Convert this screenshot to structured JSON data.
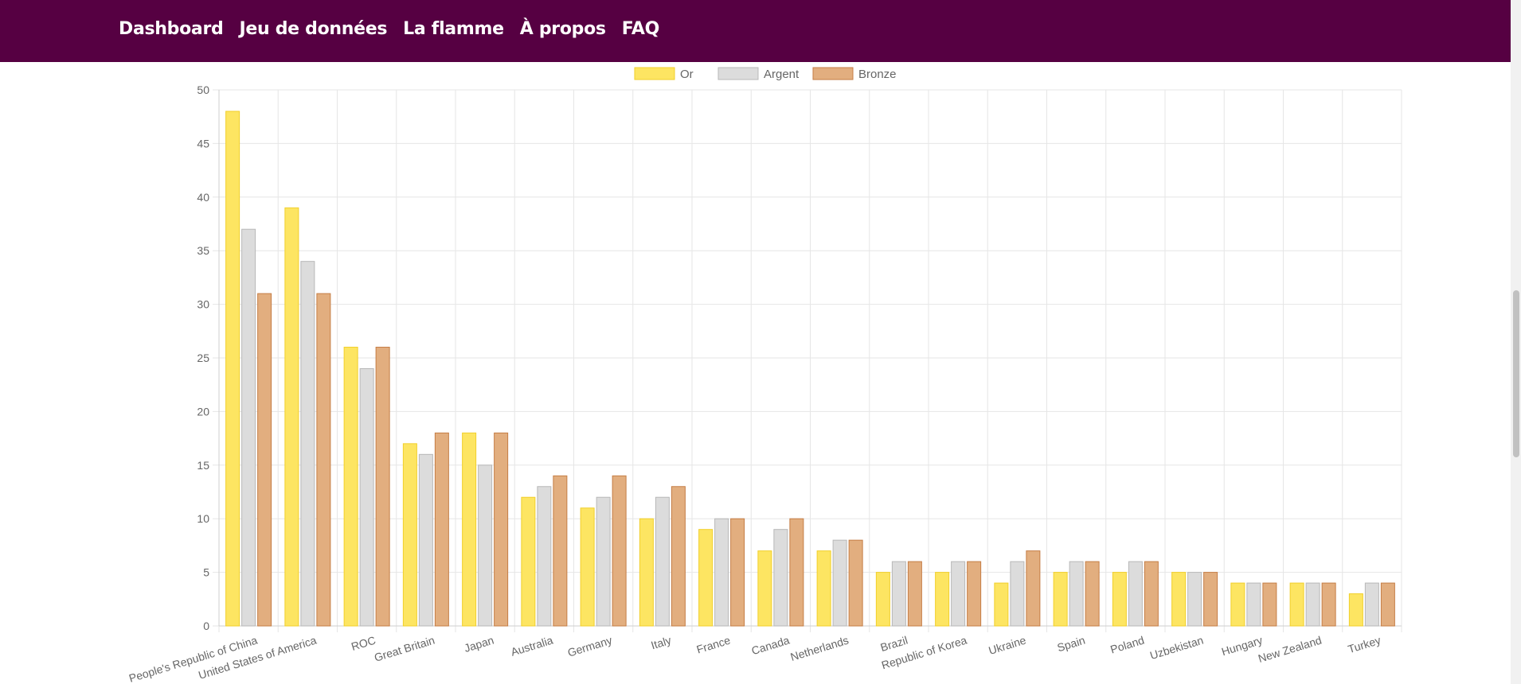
{
  "nav": {
    "items": [
      "Dashboard",
      "Jeu de données",
      "La flamme",
      "À propos",
      "FAQ"
    ]
  },
  "colors": {
    "nav_bg": "#560042",
    "gold_fill": "#fde562",
    "gold_border": "#f1cf2b",
    "silver_fill": "#dcdcdc",
    "silver_border": "#b8b8b8",
    "bronze_fill": "#e2ae7f",
    "bronze_border": "#c57d45"
  },
  "chart_data": {
    "type": "bar",
    "categories": [
      "People's Republic of China",
      "United States of America",
      "ROC",
      "Great Britain",
      "Japan",
      "Australia",
      "Germany",
      "Italy",
      "France",
      "Canada",
      "Netherlands",
      "Brazil",
      "Republic of Korea",
      "Ukraine",
      "Spain",
      "Poland",
      "Uzbekistan",
      "Hungary",
      "New Zealand",
      "Turkey"
    ],
    "series": [
      {
        "name": "Or",
        "values": [
          48,
          39,
          26,
          17,
          18,
          12,
          11,
          10,
          9,
          7,
          7,
          5,
          5,
          4,
          5,
          5,
          5,
          4,
          4,
          3
        ]
      },
      {
        "name": "Argent",
        "values": [
          37,
          34,
          24,
          16,
          15,
          13,
          12,
          12,
          10,
          9,
          8,
          6,
          6,
          6,
          6,
          6,
          5,
          4,
          4,
          4
        ]
      },
      {
        "name": "Bronze",
        "values": [
          31,
          31,
          26,
          18,
          18,
          14,
          14,
          13,
          10,
          10,
          8,
          6,
          6,
          7,
          6,
          6,
          5,
          4,
          4,
          4
        ]
      }
    ],
    "ylim": [
      0,
      50
    ],
    "yticks": [
      0,
      5,
      10,
      15,
      20,
      25,
      30,
      35,
      40,
      45,
      50
    ],
    "grid": true,
    "legend": "top-center"
  }
}
